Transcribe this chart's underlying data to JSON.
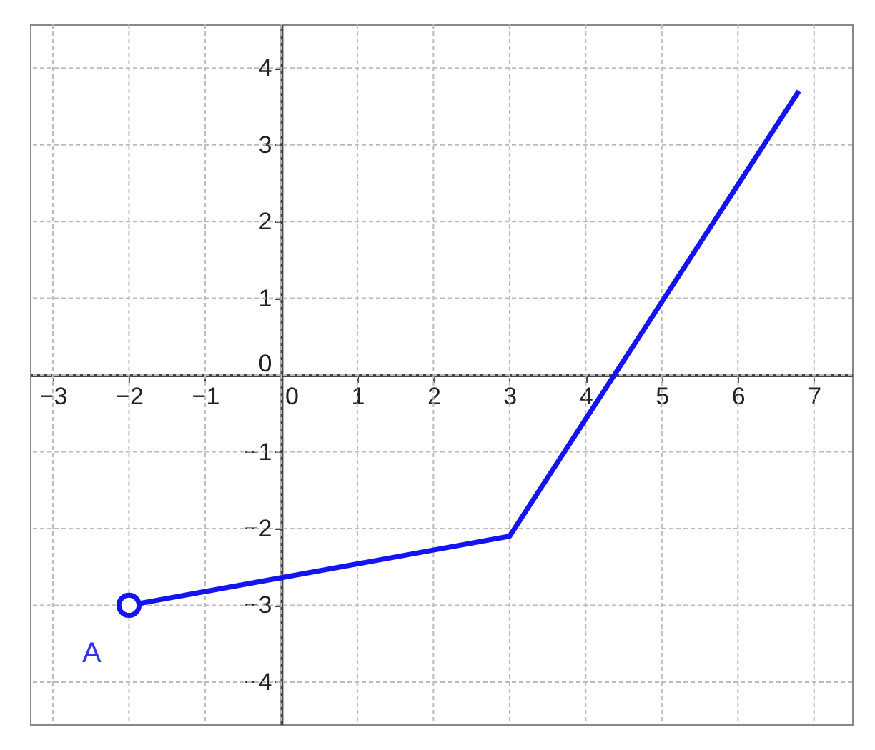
{
  "chart_data": {
    "type": "line",
    "series": [
      {
        "type": "line",
        "color": "#1414f0",
        "x": [
          -2,
          3,
          6.8
        ],
        "values": [
          -3,
          -2.1,
          3.7
        ],
        "marker": "none"
      },
      {
        "type": "scatter",
        "color": "#1414f0",
        "x": [
          -2
        ],
        "values": [
          -3
        ],
        "marker": "circle"
      }
    ],
    "xlim": [
      -3.3,
      7.5
    ],
    "ylim": [
      -4.55,
      4.57
    ],
    "xticks": [
      -3,
      -2,
      -1,
      0,
      1,
      2,
      3,
      4,
      5,
      6,
      7
    ],
    "yticks": [
      -4,
      -3,
      -2,
      -1,
      0,
      1,
      2,
      3,
      4
    ],
    "grid": true,
    "annotations": [
      {
        "text": "A",
        "x": -2,
        "y": -3
      }
    ]
  }
}
